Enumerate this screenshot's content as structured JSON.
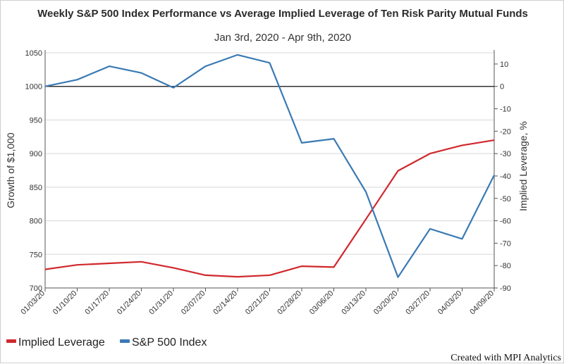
{
  "chart_data": {
    "type": "line",
    "title": "Weekly S&P 500 Index Performance vs Average Implied Leverage of Ten Risk Parity Mutual Funds",
    "subtitle": "Jan 3rd, 2020 - Apr 9th, 2020",
    "categories": [
      "01/03/20",
      "01/10/20",
      "01/17/20",
      "01/24/20",
      "01/31/20",
      "02/07/20",
      "02/14/20",
      "02/21/20",
      "02/28/20",
      "03/06/20",
      "03/13/20",
      "03/20/20",
      "03/27/20",
      "04/03/20",
      "04/09/20"
    ],
    "series": [
      {
        "name": "Implied Leverage",
        "axis": "right",
        "color": "#d0282d",
        "values": [
          -81.7,
          -79.7,
          -79.0,
          -78.3,
          -81.0,
          -84.3,
          -85.0,
          -84.3,
          -80.3,
          -80.7,
          -59.3,
          -37.7,
          -30.0,
          -26.3,
          -24.0
        ]
      },
      {
        "name": "S&P 500 Index",
        "axis": "left",
        "color": "#3a7ab4",
        "values": [
          1000,
          1010,
          1030,
          1020,
          998,
          1030,
          1047,
          1035,
          916,
          922,
          843,
          716,
          788,
          773,
          868
        ]
      }
    ],
    "y_left": {
      "label": "Growth of $1,000",
      "min": 700,
      "max": 1050,
      "ticks": [
        "700",
        "750",
        "800",
        "850",
        "900",
        "950",
        "1000",
        "1050"
      ]
    },
    "y_right": {
      "label": "Implied Leverage, %",
      "min": -90,
      "max": 15,
      "ticks": [
        "-90",
        "-80",
        "-70",
        "-60",
        "-50",
        "-40",
        "-30",
        "-20",
        "-10",
        "0",
        "10"
      ]
    },
    "zero_line": 0,
    "grid": true,
    "legend_position": "bottom-left"
  },
  "footer": {
    "credit": "Created with MPI Analytics"
  }
}
